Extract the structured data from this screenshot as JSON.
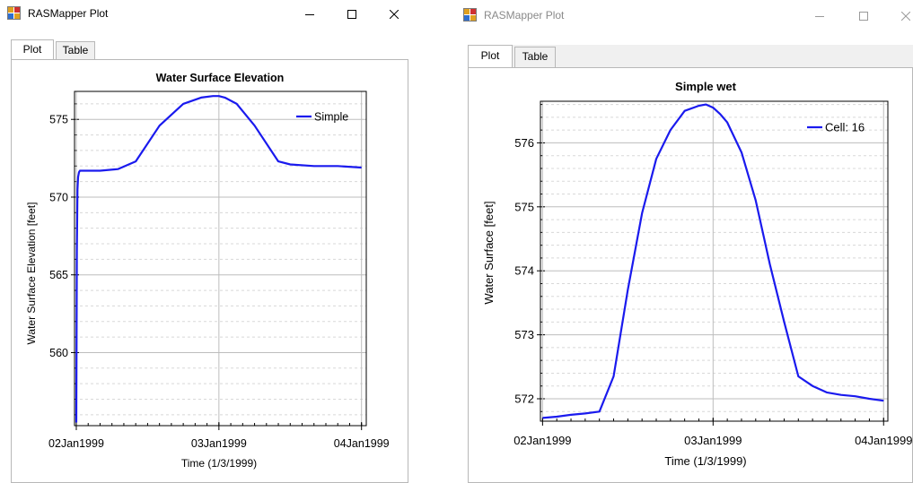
{
  "windows": [
    {
      "title": "RASMapper Plot",
      "title_color": "#000000",
      "tabs": [
        {
          "label": "Plot",
          "selected": true
        },
        {
          "label": "Table",
          "selected": false
        }
      ],
      "controls": [
        "minimize-icon",
        "maximize-icon",
        "close-icon"
      ]
    },
    {
      "title": "RASMapper Plot",
      "title_color": "#8a8a8a",
      "tabs": [
        {
          "label": "Plot",
          "selected": true
        },
        {
          "label": "Table",
          "selected": false
        }
      ],
      "controls": [
        "minimize-icon",
        "maximize-icon",
        "close-icon"
      ]
    }
  ],
  "chart_data": [
    {
      "type": "line",
      "title": "Water Surface Elevation",
      "xlabel": "Time (1/3/1999)",
      "ylabel": "Water Surface Elevation [feet]",
      "x_ticks": [
        "02Jan1999",
        "03Jan1999",
        "04Jan1999"
      ],
      "x_tick_values": [
        0,
        24,
        48
      ],
      "xlim": [
        -0.3,
        48.8
      ],
      "y_ticks": [
        560,
        565,
        570,
        575
      ],
      "ylim": [
        555.3,
        576.8
      ],
      "minor_grid_step": 1,
      "grid": true,
      "legend_position": "top-right",
      "line_color": "#1a1aee",
      "series": [
        {
          "name": "Simple",
          "x": [
            0,
            0.1,
            0.2,
            0.3,
            0.45,
            0.6,
            1,
            2,
            4,
            7,
            10,
            14,
            18,
            21,
            23,
            24,
            25,
            27,
            30,
            34,
            36,
            40,
            44,
            48
          ],
          "y": [
            555.5,
            566.5,
            570.5,
            571.3,
            571.6,
            571.7,
            571.7,
            571.7,
            571.7,
            571.8,
            572.3,
            574.6,
            576.0,
            576.4,
            576.5,
            576.5,
            576.4,
            576.0,
            574.6,
            572.3,
            572.1,
            572.0,
            572.0,
            571.9
          ]
        }
      ]
    },
    {
      "type": "line",
      "title": "Simple wet",
      "xlabel": "Time (1/3/1999)",
      "ylabel": "Water Surface [feet]",
      "x_ticks": [
        "02Jan1999",
        "03Jan1999",
        "04Jan1999"
      ],
      "x_tick_values": [
        0,
        24,
        48
      ],
      "xlim": [
        -0.3,
        48.6
      ],
      "y_ticks": [
        572,
        573,
        574,
        575,
        576
      ],
      "ylim": [
        571.65,
        576.65
      ],
      "minor_grid_step": 0.2,
      "grid": true,
      "legend_position": "top-right",
      "line_color": "#1a1aee",
      "series": [
        {
          "name": "Cell: 16",
          "x": [
            0,
            2,
            4,
            6,
            8,
            10,
            12,
            14,
            16,
            18,
            20,
            22,
            23,
            24,
            25,
            26,
            28,
            30,
            32,
            34,
            36,
            38,
            40,
            42,
            44,
            46,
            48
          ],
          "y": [
            571.7,
            571.72,
            571.75,
            571.77,
            571.8,
            572.35,
            573.7,
            574.9,
            575.75,
            576.2,
            576.5,
            576.58,
            576.6,
            576.55,
            576.45,
            576.32,
            575.85,
            575.1,
            574.1,
            573.2,
            572.35,
            572.2,
            572.1,
            572.06,
            572.04,
            572.0,
            571.97
          ]
        }
      ]
    }
  ]
}
